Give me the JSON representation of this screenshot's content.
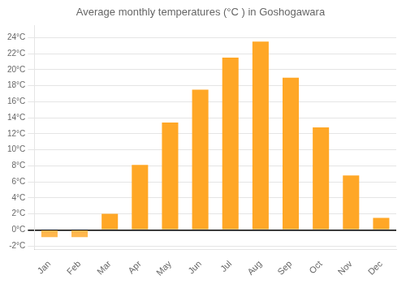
{
  "chart_data": {
    "type": "bar",
    "title": "Average monthly temperatures (°C ) in Goshogawara",
    "categories": [
      "Jan",
      "Feb",
      "Mar",
      "Apr",
      "May",
      "Jun",
      "Jul",
      "Aug",
      "Sep",
      "Oct",
      "Nov",
      "Dec"
    ],
    "values": [
      -0.9,
      -0.9,
      2.0,
      8.1,
      13.4,
      17.5,
      21.5,
      23.5,
      19.0,
      12.8,
      6.8,
      1.5
    ],
    "colors": [
      "#FFB74D",
      "#FFB74D",
      "#FFA726",
      "#FFA726",
      "#FFA726",
      "#FFA726",
      "#FFA726",
      "#FFA726",
      "#FFA726",
      "#FFA726",
      "#FFA726",
      "#FFA726"
    ],
    "ylim": [
      -2.5,
      25.5
    ],
    "yticks": [
      {
        "value": -2,
        "label": "-2°C"
      },
      {
        "value": 0,
        "label": "0°C"
      },
      {
        "value": 2,
        "label": "2°C"
      },
      {
        "value": 4,
        "label": "4°C"
      },
      {
        "value": 6,
        "label": "6°C"
      },
      {
        "value": 8,
        "label": "8°C"
      },
      {
        "value": 10,
        "label": "10°C"
      },
      {
        "value": 12,
        "label": "12°C"
      },
      {
        "value": 14,
        "label": "14°C"
      },
      {
        "value": 16,
        "label": "16°C"
      },
      {
        "value": 18,
        "label": "18°C"
      },
      {
        "value": 20,
        "label": "20°C"
      },
      {
        "value": 22,
        "label": "22°C"
      },
      {
        "value": 24,
        "label": "24°C"
      }
    ],
    "grid": true
  }
}
